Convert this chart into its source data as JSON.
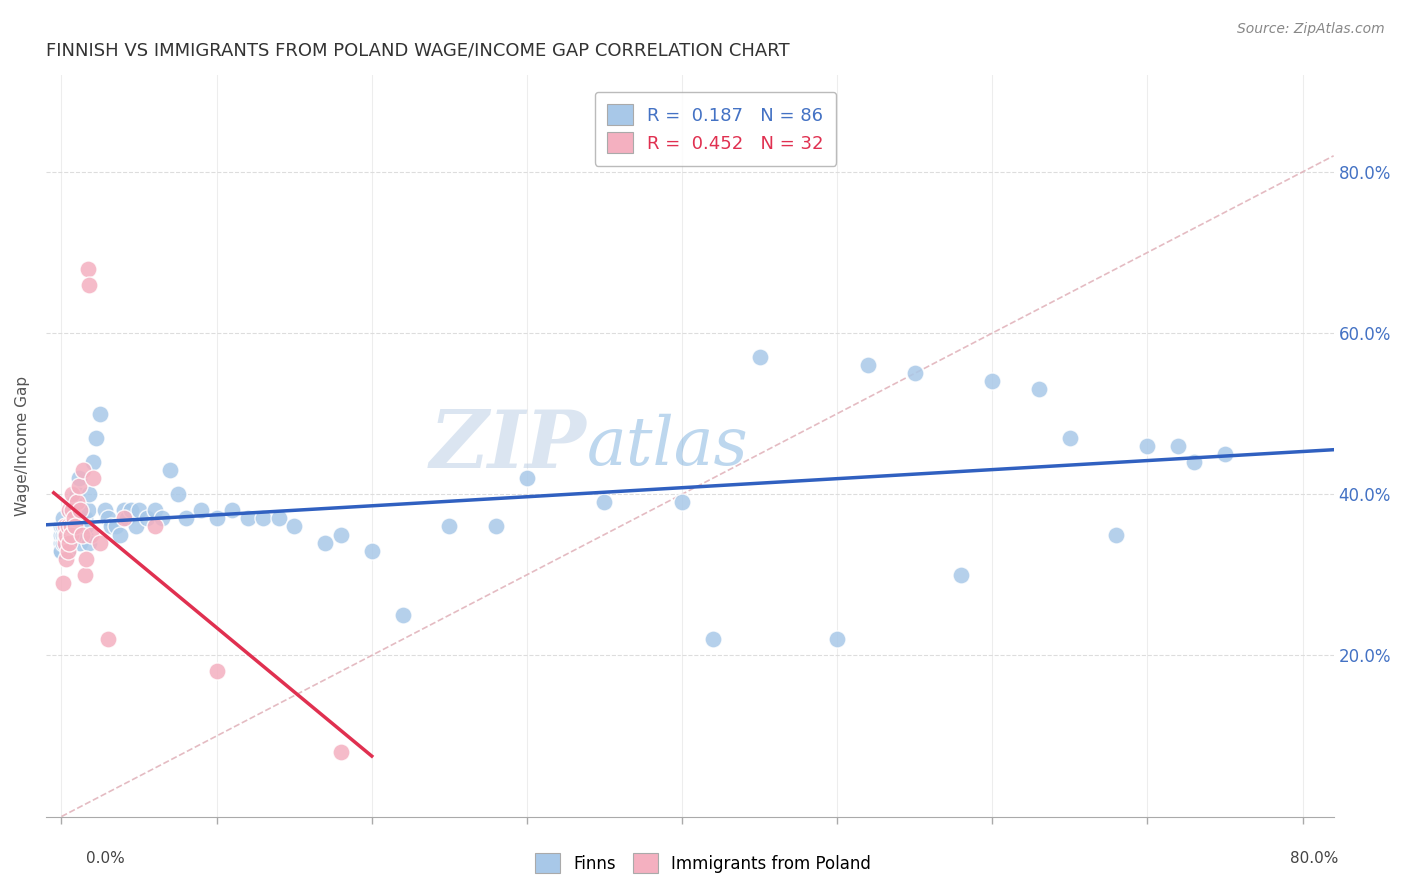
{
  "title": "FINNISH VS IMMIGRANTS FROM POLAND WAGE/INCOME GAP CORRELATION CHART",
  "source": "Source: ZipAtlas.com",
  "ylabel": "Wage/Income Gap",
  "watermark": "ZIPatlas",
  "finns_color": "#a8c8e8",
  "poland_color": "#f4b0c0",
  "finns_line_color": "#3060c0",
  "poland_line_color": "#e03050",
  "diagonal_color": "#e0b0b8",
  "background_color": "#ffffff",
  "grid_color": "#dddddd",
  "ytick_vals": [
    0.2,
    0.4,
    0.6,
    0.8
  ],
  "ytick_labels": [
    "20.0%",
    "40.0%",
    "60.0%",
    "80.0%"
  ],
  "legend_R1": "0.187",
  "legend_N1": "86",
  "legend_R2": "0.452",
  "legend_N2": "32",
  "finns_x": [
    0.002,
    0.003,
    0.004,
    0.005,
    0.005,
    0.006,
    0.006,
    0.007,
    0.007,
    0.008,
    0.008,
    0.009,
    0.009,
    0.01,
    0.01,
    0.011,
    0.012,
    0.012,
    0.013,
    0.014,
    0.015,
    0.015,
    0.016,
    0.017,
    0.018,
    0.018,
    0.02,
    0.022,
    0.025,
    0.028,
    0.03,
    0.032,
    0.035,
    0.038,
    0.04,
    0.042,
    0.045,
    0.048,
    0.05,
    0.055,
    0.06,
    0.065,
    0.07,
    0.075,
    0.08,
    0.09,
    0.1,
    0.11,
    0.12,
    0.13,
    0.14,
    0.15,
    0.17,
    0.18,
    0.2,
    0.22,
    0.25,
    0.28,
    0.3,
    0.35,
    0.4,
    0.42,
    0.45,
    0.5,
    0.52,
    0.55,
    0.58,
    0.6,
    0.63,
    0.65,
    0.68,
    0.7,
    0.72,
    0.73,
    0.75,
    0.0,
    0.0,
    0.0,
    0.0,
    0.0,
    0.001,
    0.001,
    0.001,
    0.001,
    0.002,
    0.003
  ],
  "finns_y": [
    0.34,
    0.36,
    0.33,
    0.35,
    0.37,
    0.34,
    0.38,
    0.36,
    0.35,
    0.37,
    0.39,
    0.36,
    0.38,
    0.35,
    0.4,
    0.42,
    0.34,
    0.38,
    0.37,
    0.36,
    0.35,
    0.37,
    0.36,
    0.38,
    0.34,
    0.4,
    0.44,
    0.47,
    0.5,
    0.38,
    0.37,
    0.36,
    0.36,
    0.35,
    0.38,
    0.37,
    0.38,
    0.36,
    0.38,
    0.37,
    0.38,
    0.37,
    0.43,
    0.4,
    0.37,
    0.38,
    0.37,
    0.38,
    0.37,
    0.37,
    0.37,
    0.36,
    0.34,
    0.35,
    0.33,
    0.25,
    0.36,
    0.36,
    0.42,
    0.39,
    0.39,
    0.22,
    0.57,
    0.22,
    0.56,
    0.55,
    0.3,
    0.54,
    0.53,
    0.47,
    0.35,
    0.46,
    0.46,
    0.44,
    0.45,
    0.33,
    0.34,
    0.35,
    0.36,
    0.33,
    0.34,
    0.35,
    0.36,
    0.37,
    0.35,
    0.36
  ],
  "poland_x": [
    0.001,
    0.002,
    0.002,
    0.003,
    0.003,
    0.004,
    0.004,
    0.005,
    0.005,
    0.006,
    0.006,
    0.007,
    0.007,
    0.008,
    0.009,
    0.01,
    0.011,
    0.012,
    0.013,
    0.014,
    0.015,
    0.016,
    0.017,
    0.018,
    0.019,
    0.02,
    0.025,
    0.03,
    0.04,
    0.06,
    0.1,
    0.18
  ],
  "poland_y": [
    0.29,
    0.34,
    0.36,
    0.32,
    0.35,
    0.33,
    0.36,
    0.38,
    0.34,
    0.36,
    0.35,
    0.38,
    0.4,
    0.37,
    0.36,
    0.39,
    0.41,
    0.38,
    0.35,
    0.43,
    0.3,
    0.32,
    0.68,
    0.66,
    0.35,
    0.42,
    0.34,
    0.22,
    0.37,
    0.36,
    0.18,
    0.08
  ]
}
